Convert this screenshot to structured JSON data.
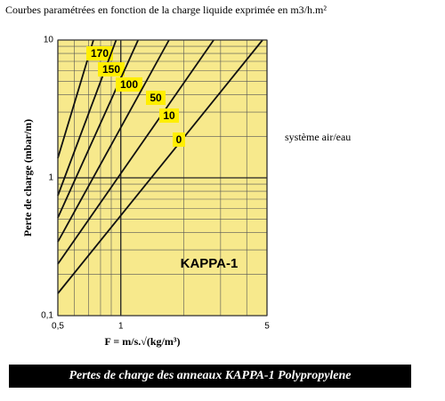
{
  "chart_data": {
    "type": "line",
    "title": "Courbes paramétrées en fonction de la charge liquide exprimée en m3/h.m²",
    "xlabel": "F = m/s.√(kg/m³)",
    "ylabel": "Perte de charge (mbar/m)",
    "annotations": [
      "KAPPA-1",
      "système air/eau"
    ],
    "caption": "Pertes de charge des anneaux KAPPA-1 Polypropylene",
    "xlog": true,
    "ylog": true,
    "grid": true,
    "minor_grid": true,
    "xlim": [
      0.5,
      5
    ],
    "ylim": [
      0.1,
      10
    ],
    "xticks": [
      {
        "value": 0.5,
        "label": "0,5"
      },
      1,
      5
    ],
    "yticks": [
      {
        "value": 0.1,
        "label": "0,1"
      },
      1,
      10
    ],
    "series": [
      {
        "name": "170",
        "color": "#111111",
        "x": [
          0.5,
          0.74
        ],
        "values": [
          1.39,
          10
        ]
      },
      {
        "name": "150",
        "color": "#111111",
        "x": [
          0.5,
          0.95
        ],
        "values": [
          0.743,
          10
        ]
      },
      {
        "name": "100",
        "color": "#111111",
        "x": [
          0.5,
          1.21
        ],
        "values": [
          0.513,
          10
        ]
      },
      {
        "name": "50",
        "color": "#111111",
        "x": [
          0.5,
          1.7
        ],
        "values": [
          0.343,
          10
        ]
      },
      {
        "name": "10",
        "color": "#111111",
        "x": [
          0.5,
          2.78
        ],
        "values": [
          0.237,
          10
        ]
      },
      {
        "name": "0",
        "color": "#111111",
        "x": [
          0.5,
          4.76
        ],
        "values": [
          0.145,
          10
        ]
      }
    ]
  }
}
